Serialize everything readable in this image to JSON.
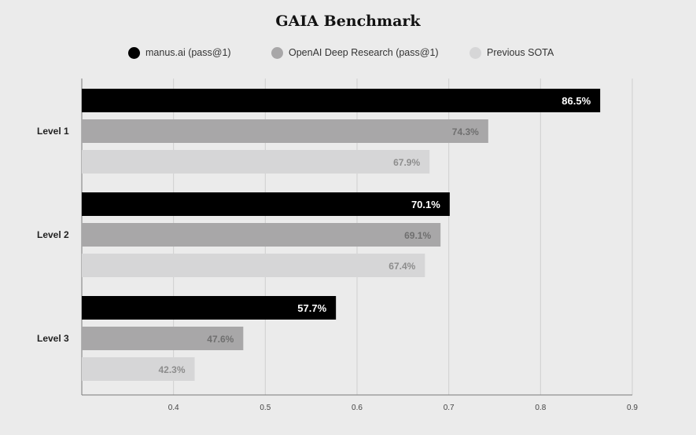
{
  "chart_data": {
    "type": "bar",
    "orientation": "horizontal",
    "title": "GAIA Benchmark",
    "categories": [
      "Level 1",
      "Level 2",
      "Level 3"
    ],
    "series": [
      {
        "name": "manus.ai (pass@1)",
        "color": "#000000",
        "label_color": "#ffffff",
        "values": [
          0.865,
          0.701,
          0.577
        ],
        "labels": [
          "86.5%",
          "70.1%",
          "57.7%"
        ]
      },
      {
        "name": "OpenAI Deep Research (pass@1)",
        "color": "#a8a7a8",
        "label_color": "#6f6f6f",
        "values": [
          0.743,
          0.691,
          0.476
        ],
        "labels": [
          "74.3%",
          "69.1%",
          "47.6%"
        ]
      },
      {
        "name": "Previous SOTA",
        "color": "#d6d6d7",
        "label_color": "#8d8d8d",
        "values": [
          0.679,
          0.674,
          0.423
        ],
        "labels": [
          "67.9%",
          "67.4%",
          "42.3%"
        ]
      }
    ],
    "xlim": [
      0.3,
      0.9
    ],
    "xticks": [
      "0.4",
      "0.5",
      "0.6",
      "0.7",
      "0.8",
      "0.9"
    ],
    "xlabel": "",
    "ylabel": "",
    "grid": "vertical",
    "legend_position": "top-center"
  }
}
